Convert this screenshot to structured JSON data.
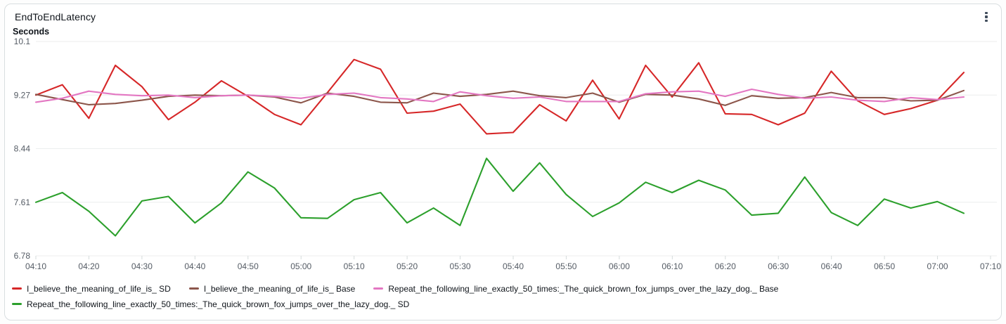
{
  "widget": {
    "title": "EndToEndLatency",
    "menu_icon": "kebab-menu"
  },
  "chart_data": {
    "type": "line",
    "title": "EndToEndLatency",
    "ylabel": "Seconds",
    "xlabel": "",
    "ylim": [
      6.78,
      10.1
    ],
    "grid": "horizontal",
    "legend_position": "bottom",
    "yticks": [
      "10.1",
      "9.27",
      "8.44",
      "7.61",
      "6.78"
    ],
    "ytick_values": [
      10.1,
      9.27,
      8.44,
      7.61,
      6.78
    ],
    "xticks": [
      "04:10",
      "04:20",
      "04:30",
      "04:40",
      "04:50",
      "05:00",
      "05:10",
      "05:20",
      "05:30",
      "05:40",
      "05:50",
      "06:00",
      "06:10",
      "06:20",
      "06:30",
      "06:40",
      "06:50",
      "07:00",
      "07:10"
    ],
    "x": [
      "04:10",
      "04:15",
      "04:20",
      "04:25",
      "04:30",
      "04:35",
      "04:40",
      "04:45",
      "04:50",
      "04:55",
      "05:00",
      "05:05",
      "05:10",
      "05:15",
      "05:20",
      "05:25",
      "05:30",
      "05:35",
      "05:40",
      "05:45",
      "05:50",
      "05:55",
      "06:00",
      "06:05",
      "06:10",
      "06:15",
      "06:20",
      "06:25",
      "06:30",
      "06:35",
      "06:40",
      "06:45",
      "06:50",
      "06:55",
      "07:00",
      "07:05"
    ],
    "series": [
      {
        "name": "I_believe_the_meaning_of_life_is_ SD",
        "color": "#d62728",
        "values": [
          9.27,
          9.43,
          8.91,
          9.73,
          9.4,
          8.89,
          9.16,
          9.49,
          9.25,
          8.97,
          8.81,
          9.31,
          9.82,
          9.67,
          8.99,
          9.02,
          9.13,
          8.67,
          8.69,
          9.12,
          8.87,
          9.5,
          8.9,
          9.73,
          9.24,
          9.77,
          8.98,
          8.97,
          8.81,
          8.99,
          9.64,
          9.18,
          8.97,
          9.06,
          9.19,
          9.62
        ]
      },
      {
        "name": "I_believe_the_meaning_of_life_is_ Base",
        "color": "#8c564b",
        "values": [
          9.28,
          9.2,
          9.12,
          9.14,
          9.19,
          9.25,
          9.27,
          9.26,
          9.27,
          9.24,
          9.15,
          9.3,
          9.25,
          9.16,
          9.15,
          9.3,
          9.25,
          9.28,
          9.33,
          9.26,
          9.23,
          9.3,
          9.16,
          9.28,
          9.27,
          9.21,
          9.11,
          9.26,
          9.22,
          9.23,
          9.31,
          9.23,
          9.23,
          9.18,
          9.19,
          9.34
        ]
      },
      {
        "name": "Repeat_the_following_line_exactly_50_times:_The_quick_brown_fox_jumps_over_the_lazy_dog._ Base",
        "color": "#e377c2",
        "values": [
          9.16,
          9.22,
          9.33,
          9.28,
          9.26,
          9.27,
          9.23,
          9.26,
          9.27,
          9.25,
          9.22,
          9.28,
          9.3,
          9.23,
          9.21,
          9.17,
          9.32,
          9.26,
          9.22,
          9.24,
          9.17,
          9.17,
          9.17,
          9.29,
          9.32,
          9.33,
          9.25,
          9.36,
          9.28,
          9.22,
          9.24,
          9.19,
          9.17,
          9.23,
          9.2,
          9.24
        ]
      },
      {
        "name": "Repeat_the_following_line_exactly_50_times:_The_quick_brown_fox_jumps_over_the_lazy_dog._ SD",
        "color": "#2ca02c",
        "values": [
          7.61,
          7.76,
          7.47,
          7.09,
          7.63,
          7.7,
          7.29,
          7.6,
          8.08,
          7.83,
          7.37,
          7.36,
          7.65,
          7.76,
          7.29,
          7.52,
          7.25,
          8.29,
          7.78,
          8.22,
          7.73,
          7.39,
          7.6,
          7.92,
          7.76,
          7.95,
          7.8,
          7.41,
          7.44,
          8.0,
          7.45,
          7.25,
          7.66,
          7.52,
          7.62,
          7.44
        ]
      }
    ]
  }
}
